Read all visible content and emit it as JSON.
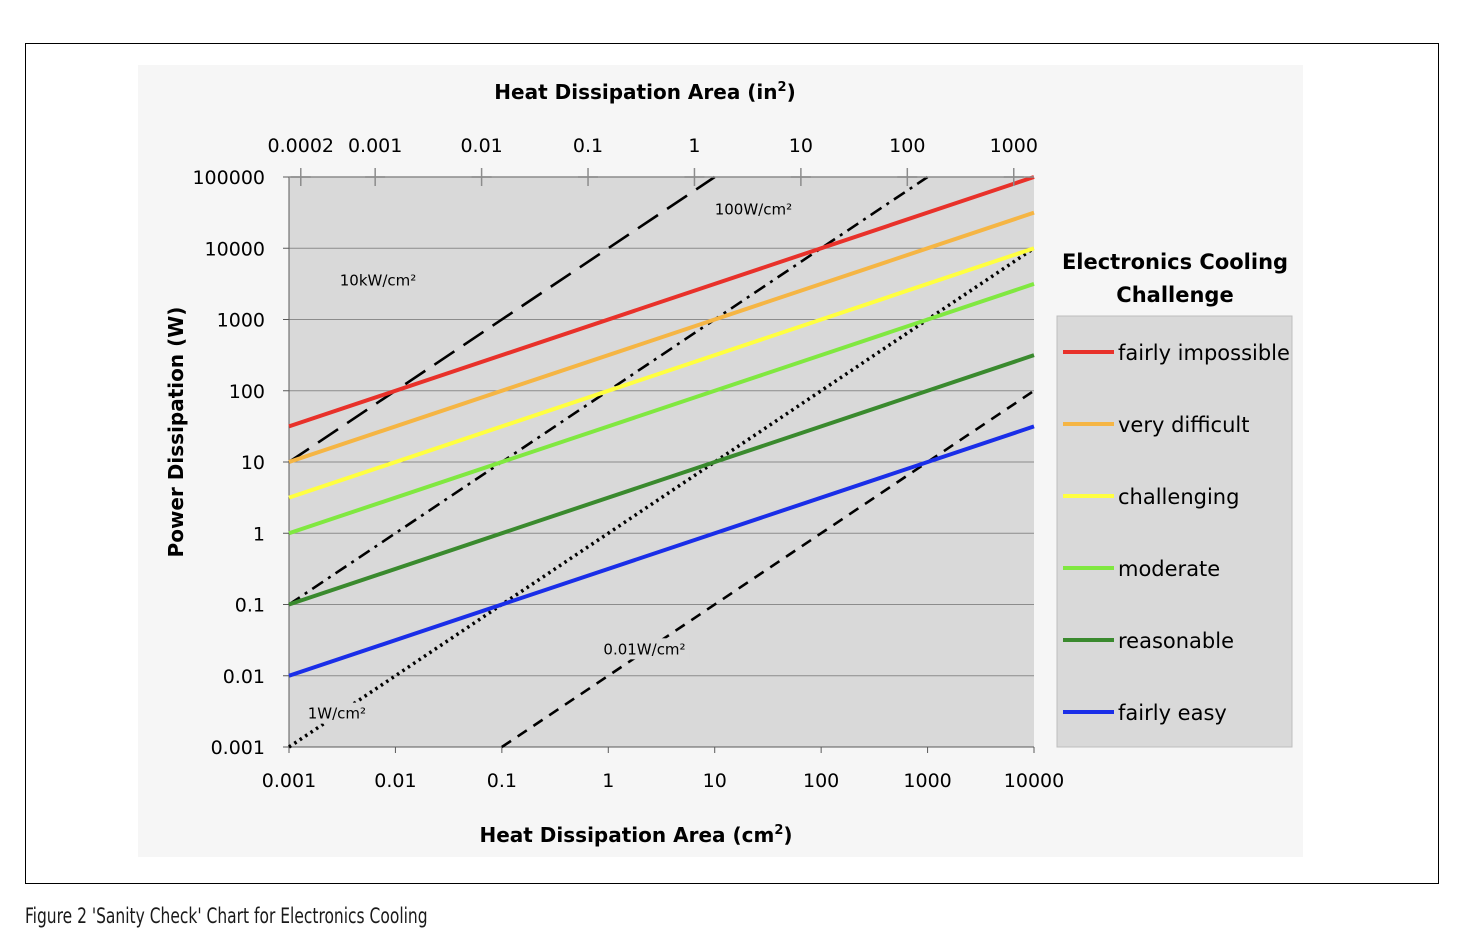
{
  "caption": "Figure 2 'Sanity Check' Chart for Electronics Cooling",
  "chart_data": {
    "type": "line",
    "x_scale": "log",
    "y_scale": "log",
    "xlabel": "Heat Dissipation Area (cm",
    "xlabel_sup": "2",
    "xlabel_end": ")",
    "x2label": "Heat Dissipation Area (in",
    "x2label_sup": "2",
    "x2label_end": ")",
    "ylabel": "Power Dissipation (W)",
    "xlim": [
      0.001,
      10000
    ],
    "ylim": [
      0.001,
      100000
    ],
    "x_ticks": [
      "0.001",
      "0.01",
      "0.1",
      "1",
      "10",
      "100",
      "1000",
      "10000"
    ],
    "x_tick_values": [
      0.001,
      0.01,
      0.1,
      1,
      10,
      100,
      1000,
      10000
    ],
    "y_ticks": [
      "0.001",
      "0.01",
      "0.1",
      "1",
      "10",
      "100",
      "1000",
      "10000",
      "100000"
    ],
    "y_tick_values": [
      0.001,
      0.01,
      0.1,
      1,
      10,
      100,
      1000,
      10000,
      100000
    ],
    "x2_ticks": [
      "0.0002",
      "0.001",
      "0.01",
      "0.1",
      "1",
      "10",
      "100",
      "1000"
    ],
    "x2_tick_values": [
      0.0002,
      0.001,
      0.01,
      0.1,
      1,
      10,
      100,
      1000
    ],
    "x2_unit_factor_cm2_per_in2": 6.4516,
    "grid": true,
    "plot_background": "#d9d9d9",
    "legend_position": "right",
    "legend_title_line1": "Electronics Cooling",
    "legend_title_line2": "Challenge",
    "series": [
      {
        "name": "fairly impossible",
        "color": "#e8312a",
        "x": [
          0.001,
          10000
        ],
        "y": [
          31.6,
          100000
        ]
      },
      {
        "name": "very difficult",
        "color": "#f5b544",
        "x": [
          0.001,
          10000
        ],
        "y": [
          10,
          31600
        ]
      },
      {
        "name": "challenging",
        "color": "#ffff40",
        "x": [
          0.001,
          10000
        ],
        "y": [
          3.16,
          10000
        ]
      },
      {
        "name": "moderate",
        "color": "#80e840",
        "x": [
          0.001,
          10000
        ],
        "y": [
          1,
          3160
        ]
      },
      {
        "name": "reasonable",
        "color": "#3a8a2e",
        "x": [
          0.001,
          10000
        ],
        "y": [
          0.1,
          316
        ]
      },
      {
        "name": "fairly easy",
        "color": "#1a2ee8",
        "x": [
          0.001,
          10000
        ],
        "y": [
          0.01,
          31.6
        ]
      }
    ],
    "reference_lines": [
      {
        "label": "10kW/cm²",
        "style": "long-dash",
        "x": [
          0.001,
          10
        ],
        "y": [
          10,
          100000
        ],
        "label_x": 0.003,
        "label_y": 3000
      },
      {
        "label": "100W/cm²",
        "style": "dash-dot",
        "x": [
          0.001,
          1000
        ],
        "y": [
          0.1,
          100000
        ],
        "label_x": 10,
        "label_y": 30000
      },
      {
        "label": "1W/cm²",
        "style": "dotted",
        "x": [
          0.001,
          10000
        ],
        "y": [
          0.001,
          10000
        ],
        "label_x": 0.0015,
        "label_y": 0.0025
      },
      {
        "label": "0.01W/cm²",
        "style": "short-dash",
        "x": [
          0.1,
          10000
        ],
        "y": [
          0.001,
          100
        ],
        "label_x": 0.9,
        "label_y": 0.02
      }
    ]
  }
}
